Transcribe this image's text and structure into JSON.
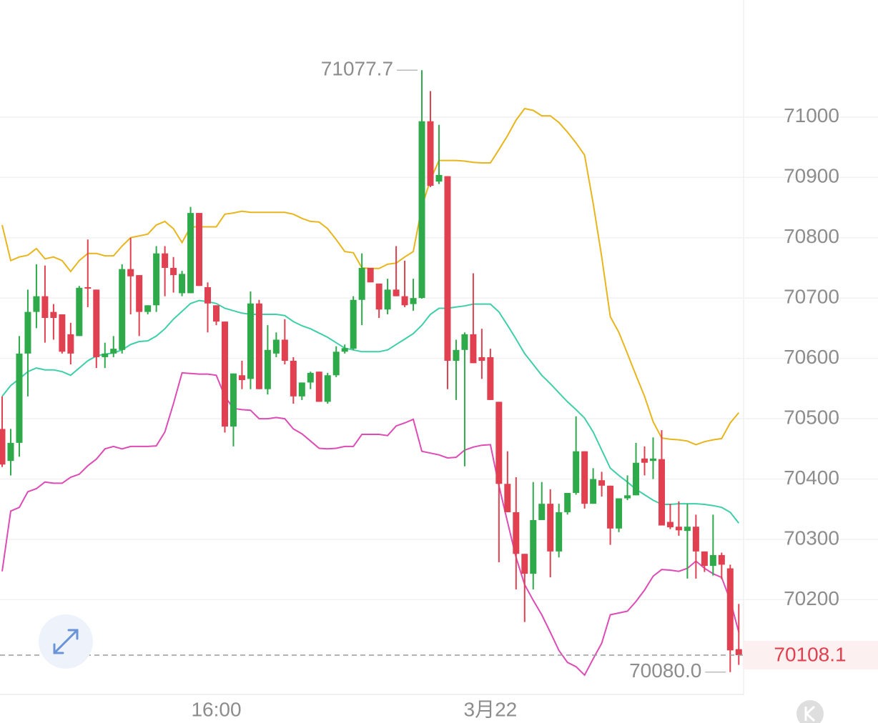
{
  "chart_data": {
    "type": "candlestick",
    "categories": [
      null,
      null,
      null,
      null,
      null,
      null,
      null,
      null,
      null,
      null,
      null,
      null,
      null,
      null,
      null,
      null,
      null,
      null,
      null,
      null,
      null,
      null,
      null,
      null,
      null,
      "16:00",
      null,
      null,
      null,
      null,
      null,
      null,
      null,
      null,
      null,
      null,
      null,
      null,
      null,
      null,
      null,
      null,
      null,
      null,
      null,
      null,
      null,
      null,
      null,
      null,
      null,
      null,
      null,
      null,
      null,
      null,
      null,
      "3月22",
      null,
      null,
      null,
      null,
      null,
      null,
      null,
      null,
      null,
      null,
      null,
      null,
      null,
      null,
      null,
      null,
      null,
      null,
      null,
      null,
      null,
      null,
      null,
      null,
      null,
      null,
      null,
      null,
      null
    ],
    "open": [
      70483,
      70430,
      70460,
      70608,
      70677,
      70703,
      70677,
      70673,
      70640,
      70637,
      70718,
      70714,
      70602,
      70608,
      70614,
      70748,
      70738,
      70677,
      70688,
      70774,
      70750,
      70708,
      70708,
      70841,
      70718,
      70688,
      70661,
      70487,
      70572,
      70566,
      70691,
      70549,
      70608,
      70631,
      70596,
      70537,
      70560,
      70578,
      70528,
      70572,
      70611,
      70616,
      70697,
      70750,
      70724,
      70681,
      70714,
      70703,
      70690,
      70700,
      70993,
      70893,
      70902,
      70596,
      70614,
      70640,
      70602,
      70602,
      70528,
      70392,
      70345,
      70276,
      70243,
      70332,
      70359,
      70280,
      70345,
      70377,
      70446,
      70359,
      70398,
      70389,
      70318,
      70368,
      70373,
      70434,
      70430,
      70433,
      70329,
      70321,
      70314,
      70321,
      70280,
      70256,
      70274,
      70252,
      70118
    ],
    "high": [
      70537,
      70483,
      70637,
      70714,
      70756,
      70754,
      70690,
      70673,
      70659,
      70720,
      70797,
      70714,
      70626,
      70637,
      70756,
      70800,
      70738,
      70688,
      70786,
      70786,
      70768,
      70745,
      70851,
      70841,
      70726,
      70688,
      70661,
      70575,
      70596,
      70711,
      70697,
      70655,
      70643,
      70665,
      70602,
      70560,
      70578,
      70578,
      70576,
      70620,
      70623,
      70703,
      70774,
      70750,
      70724,
      70732,
      70786,
      70762,
      70732,
      71077.7,
      71043,
      70987,
      70902,
      70631,
      70643,
      70741,
      70649,
      70616,
      70528,
      70446,
      70403,
      70276,
      70395,
      70395,
      70383,
      70359,
      70377,
      70504,
      70446,
      70418,
      70412,
      70389,
      70368,
      70406,
      70460,
      70454,
      70469,
      70481,
      70359,
      70363,
      70359,
      70341,
      70280,
      70341,
      70278,
      70258,
      70193
    ],
    "low": [
      70420,
      70406,
      70437,
      70537,
      70650,
      70626,
      70631,
      70608,
      70590,
      70637,
      70685,
      70584,
      70584,
      70602,
      70608,
      70673,
      70637,
      70673,
      70677,
      70703,
      70709,
      70703,
      70708,
      70720,
      70643,
      70655,
      70477,
      70454,
      70549,
      70549,
      70549,
      70540,
      70602,
      70590,
      70525,
      70531,
      70549,
      70528,
      70525,
      70569,
      70608,
      70614,
      70655,
      70726,
      70667,
      70673,
      70703,
      70685,
      70679,
      70699,
      70884,
      70889,
      70549,
      70531,
      70421,
      70592,
      70566,
      70531,
      70262,
      70345,
      70217,
      70163,
      70217,
      70332,
      70237,
      70270,
      70341,
      70374,
      70351,
      70359,
      70371,
      70291,
      70312,
      70365,
      70373,
      70406,
      70400,
      70323,
      70317,
      70306,
      70235,
      70235,
      70246,
      70240,
      70234,
      70080,
      70092
    ],
    "close": [
      70424,
      70460,
      70608,
      70677,
      70703,
      70667,
      70667,
      70611,
      70608,
      70717,
      70716,
      70602,
      70608,
      70616,
      70748,
      70736,
      70677,
      70688,
      70774,
      70750,
      70738,
      70740,
      70841,
      70720,
      70691,
      70661,
      70487,
      70575,
      70564,
      70691,
      70549,
      70614,
      70631,
      70596,
      70537,
      70560,
      70576,
      70528,
      70572,
      70611,
      70617,
      70697,
      70750,
      70726,
      70681,
      70714,
      70703,
      70688,
      70700,
      70993,
      70886,
      70904,
      70596,
      70614,
      70640,
      70592,
      70596,
      70531,
      70392,
      70345,
      70276,
      70243,
      70332,
      70359,
      70280,
      70345,
      70377,
      70446,
      70359,
      70400,
      70389,
      70318,
      70368,
      70373,
      70427,
      70427,
      70434,
      70323,
      70320,
      70315,
      70321,
      70280,
      70256,
      70274,
      70258,
      70116,
      70108.1
    ],
    "up_color": "#2eaa4a",
    "down_color": "#e0404f",
    "lines": [
      {
        "color": "#e8b51c",
        "values": [
          70821,
          70762,
          70768,
          70771,
          70782,
          70765,
          70768,
          70762,
          70744,
          70762,
          70774,
          70774,
          70770,
          70770,
          70786,
          70800,
          70803,
          70806,
          70821,
          70827,
          70815,
          70792,
          70818,
          70818,
          70818,
          70818,
          70839,
          70841,
          70844,
          70842,
          70842,
          70842,
          70842,
          70842,
          70839,
          70832,
          70827,
          70826,
          70815,
          70797,
          70777,
          70775,
          70750,
          70749,
          70749,
          70756,
          70758,
          70768,
          70777,
          70851,
          70896,
          70928,
          70928,
          70928,
          70927,
          70925,
          70924,
          70924,
          70946,
          70969,
          70995,
          71014,
          71011,
          71002,
          71002,
          70991,
          70975,
          70957,
          70937,
          70857,
          70768,
          70669,
          70643,
          70608,
          70572,
          70537,
          70495,
          70468,
          70466,
          70465,
          70463,
          70457,
          70462,
          70465,
          70467,
          70493,
          70510
        ]
      },
      {
        "color": "#3fcfa8",
        "values": [
          70537,
          70555,
          70566,
          70578,
          70584,
          70581,
          70581,
          70578,
          70572,
          70584,
          70596,
          70604,
          70607,
          70609,
          70614,
          70623,
          70628,
          70629,
          70637,
          70649,
          70665,
          70678,
          70691,
          70696,
          70694,
          70691,
          70683,
          70679,
          70675,
          70673,
          70673,
          70673,
          70673,
          70671,
          70661,
          70654,
          70649,
          70642,
          70635,
          70626,
          70617,
          70614,
          70611,
          70611,
          70611,
          70614,
          70623,
          70632,
          70641,
          70655,
          70673,
          70683,
          70683,
          70685,
          70687,
          70690,
          70690,
          70690,
          70677,
          70655,
          70632,
          70608,
          70590,
          70572,
          70558,
          70543,
          70528,
          70515,
          70501,
          70478,
          70448,
          70418,
          70406,
          70395,
          70383,
          70374,
          70365,
          70358,
          70358,
          70359,
          70359,
          70359,
          70358,
          70356,
          70353,
          70345,
          70327
        ]
      },
      {
        "color": "#dd4bb5",
        "values": [
          70247,
          70347,
          70353,
          70379,
          70384,
          70395,
          70393,
          70393,
          70403,
          70408,
          70422,
          70433,
          70450,
          70454,
          70450,
          70454,
          70454,
          70454,
          70455,
          70478,
          70525,
          70576,
          70575,
          70574,
          70574,
          70572,
          70537,
          70517,
          70515,
          70514,
          70500,
          70500,
          70502,
          70500,
          70483,
          70475,
          70463,
          70451,
          70450,
          70451,
          70454,
          70454,
          70474,
          70474,
          70474,
          70472,
          70488,
          70493,
          70499,
          70446,
          70443,
          70440,
          70435,
          70436,
          70448,
          70453,
          70456,
          70457,
          70389,
          70329,
          70270,
          70225,
          70199,
          70175,
          70146,
          70116,
          70096,
          70089,
          70075,
          70102,
          70128,
          70175,
          70178,
          70181,
          70197,
          70216,
          70239,
          70250,
          70249,
          70247,
          70252,
          70264,
          70252,
          70243,
          70237,
          70199,
          70146
        ]
      }
    ],
    "ylim": [
      70043,
      71194
    ],
    "yticks": [
      70200,
      70300,
      70400,
      70500,
      70600,
      70700,
      70800,
      70900,
      71000
    ],
    "grid": true,
    "max_price": 71077.7,
    "min_price": {
      "value": 70080,
      "label": "70080.0"
    },
    "last_price": 70108.1
  }
}
